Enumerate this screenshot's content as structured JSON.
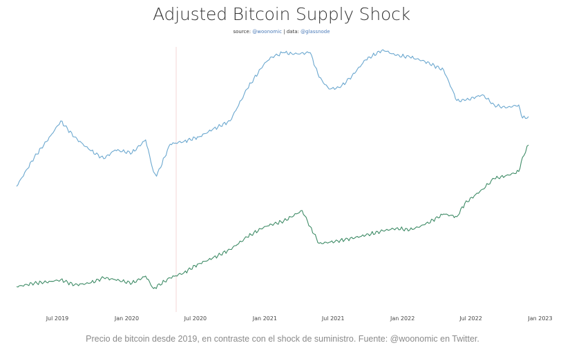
{
  "header": {
    "title": "Adjusted Bitcoin Supply Shock",
    "source_prefix": "source: ",
    "source_handle": "@woonomic",
    "source_sep": " | data: ",
    "data_handle": "@glassnode"
  },
  "caption": "Precio de bitcoin desde 2019, en contraste con el shock de suministro. Fuente: @woonomic en Twitter.",
  "colors": {
    "supply": "#6aa7cf",
    "price": "#3e8b66",
    "marker": "#f3d6d6"
  },
  "chart_data": {
    "type": "line",
    "title": "Adjusted Bitcoin Supply Shock",
    "x_ticks": [
      "Jul 2019",
      "Jan 2020",
      "Jul 2020",
      "Jan 2021",
      "Jul 2021",
      "Jan 2022",
      "Jul 2022",
      "Jan 2023"
    ],
    "xlim": [
      "2019-03-15",
      "2023-01-01"
    ],
    "y_axis_labels": "none",
    "grid": false,
    "vertical_marker": "2020-05-11",
    "series": [
      {
        "key": "supply",
        "note": "relative level 0-100 (no y scale printed)",
        "x": [
          "2019-03-15",
          "2019-05-01",
          "2019-06-20",
          "2019-07-10",
          "2019-08-15",
          "2019-09-25",
          "2019-11-01",
          "2019-12-01",
          "2020-01-15",
          "2020-02-20",
          "2020-03-12",
          "2020-03-20",
          "2020-04-25",
          "2020-06-01",
          "2020-07-10",
          "2020-08-15",
          "2020-10-01",
          "2020-11-15",
          "2021-01-01",
          "2021-01-20",
          "2021-02-20",
          "2021-03-20",
          "2021-05-01",
          "2021-05-25",
          "2021-06-20",
          "2021-07-20",
          "2021-08-20",
          "2021-09-25",
          "2021-11-10",
          "2021-12-15",
          "2022-01-20",
          "2022-03-01",
          "2022-04-20",
          "2022-05-25",
          "2022-06-15",
          "2022-08-01",
          "2022-09-01",
          "2022-10-01",
          "2022-11-05",
          "2022-11-15",
          "2022-12-01"
        ],
        "values": [
          3,
          23,
          40,
          48,
          37,
          28,
          22,
          28,
          26,
          35,
          13,
          10,
          32,
          34,
          37,
          42,
          48,
          70,
          88,
          92,
          95,
          94,
          95,
          78,
          70,
          71,
          79,
          90,
          97,
          93,
          92,
          89,
          83,
          62,
          62,
          66,
          59,
          57,
          59,
          50,
          51
        ]
      },
      {
        "key": "price",
        "note": "relative level 0-100 (no y scale printed)",
        "x": [
          "2019-03-15",
          "2019-05-01",
          "2019-06-20",
          "2019-07-10",
          "2019-08-15",
          "2019-09-25",
          "2019-11-01",
          "2019-12-01",
          "2020-01-15",
          "2020-02-20",
          "2020-03-12",
          "2020-04-25",
          "2020-06-01",
          "2020-07-10",
          "2020-08-15",
          "2020-10-01",
          "2020-11-15",
          "2021-01-01",
          "2021-02-20",
          "2021-04-10",
          "2021-05-01",
          "2021-05-25",
          "2021-06-20",
          "2021-08-01",
          "2021-09-25",
          "2021-11-10",
          "2021-12-15",
          "2022-01-20",
          "2022-03-01",
          "2022-04-20",
          "2022-05-25",
          "2022-06-15",
          "2022-08-01",
          "2022-09-01",
          "2022-10-10",
          "2022-11-05",
          "2022-11-15",
          "2022-12-01"
        ],
        "values": [
          2,
          6,
          8,
          10,
          4,
          6,
          12,
          10,
          6,
          14,
          0,
          12,
          18,
          28,
          34,
          44,
          58,
          70,
          76,
          88,
          70,
          51,
          52,
          55,
          60,
          65,
          68,
          66,
          72,
          84,
          81,
          96,
          112,
          124,
          128,
          132,
          148,
          162
        ]
      }
    ]
  }
}
